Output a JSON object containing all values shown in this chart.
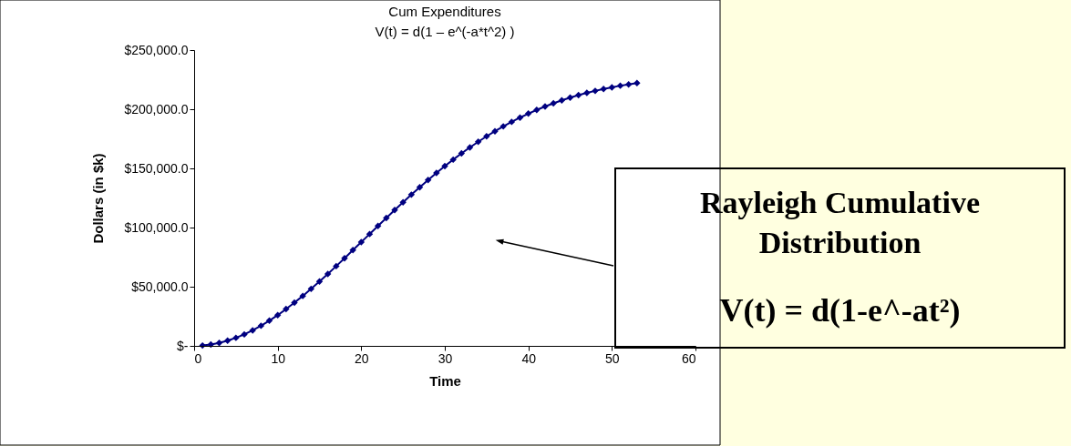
{
  "chart_data": {
    "type": "line",
    "title": "Cum Expenditures",
    "subtitle": "V(t) = d(1 – e^(-a*t^2) )",
    "xlabel": "Time",
    "ylabel": "Dollars (in $k)",
    "x": [
      1,
      2,
      3,
      4,
      5,
      6,
      7,
      8,
      9,
      10,
      11,
      12,
      13,
      14,
      15,
      16,
      17,
      18,
      19,
      20,
      21,
      22,
      23,
      24,
      25,
      26,
      27,
      28,
      29,
      30,
      31,
      32,
      33,
      34,
      35,
      36,
      37,
      38,
      39,
      40,
      41,
      42,
      43,
      44,
      45,
      46,
      47,
      48,
      49,
      50,
      51,
      52,
      53
    ],
    "series": [
      {
        "color": "#000080",
        "values": [
          300,
          1100,
          2500,
          4400,
          6800,
          9700,
          13100,
          17000,
          21300,
          26000,
          31100,
          36500,
          42200,
          48200,
          54400,
          60800,
          67400,
          74100,
          80900,
          87700,
          94500,
          101300,
          108100,
          114800,
          121400,
          127800,
          134100,
          140200,
          146200,
          151900,
          157400,
          162700,
          167700,
          172500,
          177100,
          181400,
          185500,
          189300,
          192900,
          196300,
          199400,
          202300,
          205000,
          207500,
          209800,
          211900,
          213800,
          215500,
          217100,
          218500,
          219900,
          221000,
          222100
        ]
      }
    ],
    "xlim": [
      0,
      60
    ],
    "xticks": [
      0,
      10,
      20,
      30,
      40,
      50,
      60
    ],
    "ylim": [
      0,
      250000
    ],
    "yticks": [
      {
        "value": 0,
        "label": "$-"
      },
      {
        "value": 50000,
        "label": "$50,000.0"
      },
      {
        "value": 100000,
        "label": "$100,000.0"
      },
      {
        "value": 150000,
        "label": "$150,000.0"
      },
      {
        "value": 200000,
        "label": "$200,000.0"
      },
      {
        "value": 250000,
        "label": "$250,000.0"
      }
    ],
    "marker": "diamond",
    "grid": false,
    "annotations": [
      "Rayleigh Cumulative Distribution",
      "V(t) = d(1-e^-at²)"
    ]
  }
}
